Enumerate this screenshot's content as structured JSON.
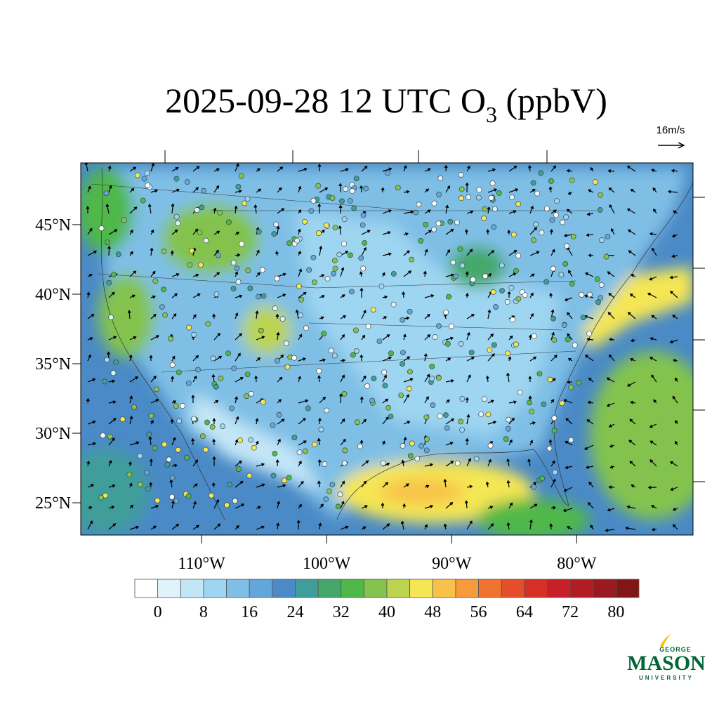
{
  "chart_data": {
    "type": "map",
    "title": {
      "text": "2025-09-28 12 UTC O",
      "subscript": "3",
      "suffix": " (ppbV)"
    },
    "vector_key": "16m/s",
    "xlim": [
      -119.66,
      -70.7
    ],
    "ylim": [
      22.68,
      49.44
    ],
    "xticks": [
      {
        "value": -110,
        "label": "110°W"
      },
      {
        "value": -100,
        "label": "100°W"
      },
      {
        "value": -90,
        "label": "90°W"
      },
      {
        "value": -80,
        "label": "80°W"
      }
    ],
    "yticks": [
      {
        "value": 45,
        "label": "45°N"
      },
      {
        "value": 40,
        "label": "40°N"
      },
      {
        "value": 35,
        "label": "35°N"
      },
      {
        "value": 30,
        "label": "30°N"
      },
      {
        "value": 25,
        "label": "25°N"
      }
    ],
    "colorbar": {
      "colors": [
        "#ffffff",
        "#e0f3fb",
        "#c3e6f7",
        "#9ed5f1",
        "#7fbfe6",
        "#63a6d9",
        "#4a8ac6",
        "#3f9e9a",
        "#45a86a",
        "#4fb848",
        "#83c34e",
        "#bcd450",
        "#f5e653",
        "#f8c24a",
        "#f69a3b",
        "#f07430",
        "#e54e2a",
        "#d62f26",
        "#c72027",
        "#b21d24",
        "#9a1a1f",
        "#821517"
      ],
      "ticks": [
        0,
        8,
        16,
        24,
        32,
        40,
        48,
        56,
        64,
        72,
        80
      ]
    }
  },
  "logo": {
    "top": "GEORGE",
    "main": "MASON",
    "bottom": "UNIVERSITY"
  }
}
